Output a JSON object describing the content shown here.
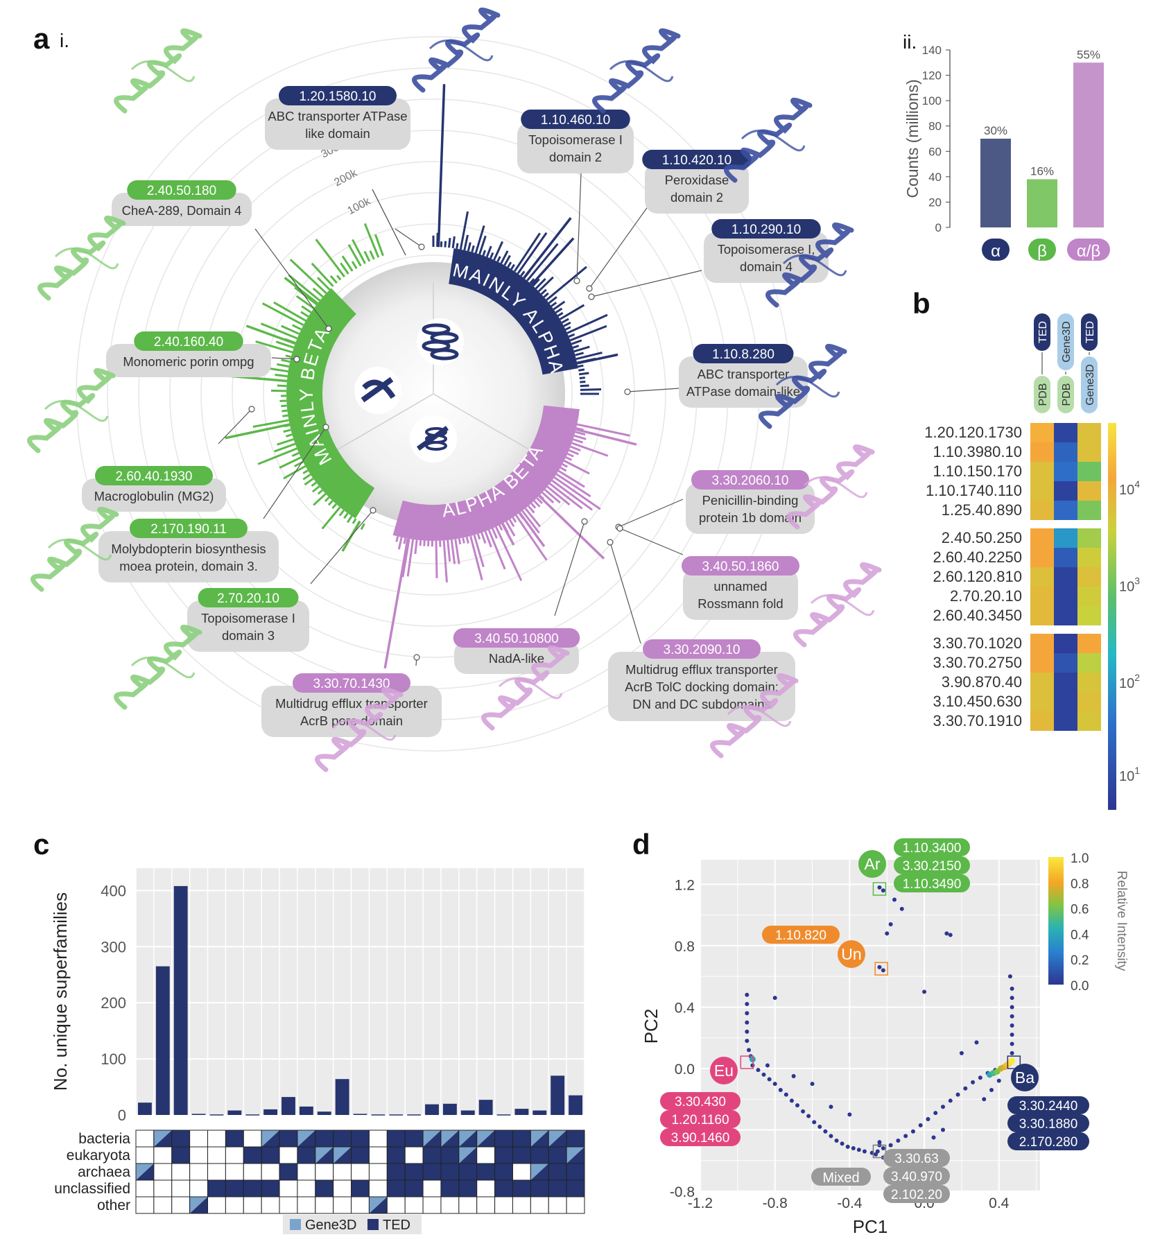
{
  "panel_labels": {
    "a": "a",
    "a_i": "i.",
    "a_ii": "ii.",
    "b": "b",
    "c": "c",
    "d": "d"
  },
  "colors": {
    "alpha": "#26356f",
    "beta": "#5cb849",
    "alphabeta": "#c084c8",
    "alpha_light": "#3c4fa0",
    "beta_light": "#8ccf7e",
    "ab_light": "#d4a3d8",
    "pill_grey": "#d9d9d9",
    "pink": "#e2457d",
    "orange": "#ef8b2c",
    "grey_label": "#9a9a9a"
  },
  "panel_a_i": {
    "type": "circular-bar",
    "ring_labels": [
      "100k",
      "200k",
      "300k"
    ],
    "ring_values": [
      100000,
      200000,
      300000
    ],
    "sectors": [
      {
        "label": "MAINLY ALPHA",
        "color": "#26356f"
      },
      {
        "label": "MAINLY BETA",
        "color": "#5cb849"
      },
      {
        "label": "ALPHA BETA",
        "color": "#c084c8"
      }
    ],
    "annotations": [
      {
        "id": "1.20.1580.10",
        "desc1": "ABC transporter ATPase",
        "desc2": "like domain",
        "class": "alpha"
      },
      {
        "id": "1.10.460.10",
        "desc1": "Topoisomerase I",
        "desc2": "domain 2",
        "class": "alpha"
      },
      {
        "id": "1.10.420.10",
        "desc1": "Peroxidase",
        "desc2": "domain 2",
        "class": "alpha"
      },
      {
        "id": "1.10.290.10",
        "desc1": "Topoisomerase I,",
        "desc2": "domain 4",
        "class": "alpha"
      },
      {
        "id": "1.10.8.280",
        "desc1": "ABC transporter",
        "desc2": "ATPase domain-like",
        "class": "alpha"
      },
      {
        "id": "3.30.2060.10",
        "desc1": "Penicillin-binding",
        "desc2": "protein 1b domain",
        "class": "ab"
      },
      {
        "id": "3.40.50.1860",
        "desc1": "unnamed",
        "desc2": "Rossmann fold",
        "class": "ab"
      },
      {
        "id": "3.30.2090.10",
        "desc1": "Multidrug efflux transporter",
        "desc2": "AcrB TolC docking domain;",
        "desc3": "DN and DC subdomains",
        "class": "ab"
      },
      {
        "id": "3.40.50.10800",
        "desc1": "NadA-like",
        "class": "ab"
      },
      {
        "id": "3.30.70.1430",
        "desc1": "Multidrug efflux transporter",
        "desc2": "AcrB pore domain",
        "class": "ab"
      },
      {
        "id": "2.70.20.10",
        "desc1": "Topoisomerase I",
        "desc2": "domain 3",
        "class": "beta"
      },
      {
        "id": "2.170.190.11",
        "desc1": "Molybdopterin biosynthesis",
        "desc2": "moea protein, domain 3.",
        "class": "beta"
      },
      {
        "id": "2.60.40.1930",
        "desc1": "Macroglobulin (MG2)",
        "class": "beta"
      },
      {
        "id": "2.40.160.40",
        "desc1": "Monomeric porin ompg",
        "class": "beta"
      },
      {
        "id": "2.40.50.180",
        "desc1": "CheA-289, Domain 4",
        "class": "beta"
      }
    ]
  },
  "panel_a_ii": {
    "type": "bar",
    "ylabel": "Counts (millions)",
    "ylim": [
      0,
      140
    ],
    "yticks": [
      "0",
      "20",
      "40",
      "60",
      "80",
      "100",
      "120",
      "140"
    ],
    "categories": [
      "α",
      "β",
      "α/β"
    ],
    "values": [
      70,
      38,
      130
    ],
    "percent_labels": [
      "30%",
      "16%",
      "55%"
    ]
  },
  "panel_b": {
    "type": "heatmap",
    "columns": [
      {
        "from": "PDB",
        "to": "TED"
      },
      {
        "from": "PDB",
        "to": "Gene3D"
      },
      {
        "from": "Gene3D",
        "to": "TED"
      }
    ],
    "groups": [
      {
        "rows": [
          {
            "label": "1.20.120.1730",
            "values": [
              0.88,
              0.06,
              0.78
            ]
          },
          {
            "label": "1.10.3980.10",
            "values": [
              0.86,
              0.18,
              0.78
            ]
          },
          {
            "label": "1.10.150.170",
            "values": [
              0.78,
              0.22,
              0.58
            ]
          },
          {
            "label": "1.10.1740.110",
            "values": [
              0.78,
              0.05,
              0.8
            ]
          },
          {
            "label": "1.25.40.890",
            "values": [
              0.8,
              0.2,
              0.6
            ]
          }
        ]
      },
      {
        "rows": [
          {
            "label": "2.40.50.250",
            "values": [
              0.86,
              0.32,
              0.66
            ]
          },
          {
            "label": "2.60.40.2250",
            "values": [
              0.86,
              0.15,
              0.74
            ]
          },
          {
            "label": "2.60.120.810",
            "values": [
              0.78,
              0.05,
              0.78
            ]
          },
          {
            "label": "2.70.20.10",
            "values": [
              0.8,
              0.05,
              0.74
            ]
          },
          {
            "label": "2.60.40.3450",
            "values": [
              0.8,
              0.05,
              0.72
            ]
          }
        ]
      },
      {
        "rows": [
          {
            "label": "3.30.70.1020",
            "values": [
              0.86,
              0.04,
              0.86
            ]
          },
          {
            "label": "3.30.70.2750",
            "values": [
              0.86,
              0.12,
              0.7
            ]
          },
          {
            "label": "3.90.870.40",
            "values": [
              0.78,
              0.05,
              0.76
            ]
          },
          {
            "label": "3.10.450.630",
            "values": [
              0.78,
              0.05,
              0.78
            ]
          },
          {
            "label": "3.30.70.1910",
            "values": [
              0.8,
              0.05,
              0.76
            ]
          }
        ]
      }
    ],
    "colorbar_ticks": [
      {
        "label": "10",
        "exp": "4",
        "frac": 0.83
      },
      {
        "label": "10",
        "exp": "3",
        "frac": 0.58
      },
      {
        "label": "10",
        "exp": "2",
        "frac": 0.33
      },
      {
        "label": "10",
        "exp": "1",
        "frac": 0.09
      }
    ]
  },
  "panel_c": {
    "type": "bar",
    "ylabel": "No. unique superfamilies",
    "ylim": [
      0,
      440
    ],
    "yticks": [
      0,
      100,
      200,
      300,
      400
    ],
    "values": [
      22,
      265,
      408,
      2,
      1,
      8,
      1,
      10,
      32,
      15,
      6,
      64,
      2,
      1,
      1,
      1,
      19,
      20,
      8,
      27,
      1,
      11,
      8,
      70,
      35
    ],
    "matrix_rows": [
      "bacteria",
      "eukaryota",
      "archaea",
      "unclassified",
      "other"
    ],
    "matrix": [
      [
        0,
        3,
        2,
        0,
        0,
        2,
        0,
        3,
        2,
        3,
        2,
        2,
        2,
        0,
        2,
        2,
        3,
        3,
        3,
        3,
        2,
        2,
        3,
        3,
        2
      ],
      [
        0,
        0,
        2,
        0,
        0,
        0,
        2,
        2,
        0,
        2,
        3,
        3,
        2,
        0,
        2,
        0,
        2,
        2,
        3,
        0,
        2,
        2,
        2,
        2,
        3
      ],
      [
        3,
        0,
        0,
        0,
        0,
        0,
        0,
        0,
        2,
        0,
        0,
        0,
        0,
        0,
        2,
        2,
        2,
        2,
        2,
        2,
        2,
        0,
        3,
        2,
        2
      ],
      [
        0,
        0,
        0,
        0,
        2,
        2,
        2,
        2,
        0,
        0,
        2,
        0,
        2,
        0,
        2,
        2,
        0,
        2,
        2,
        0,
        2,
        2,
        2,
        2,
        2
      ],
      [
        0,
        0,
        0,
        3,
        0,
        0,
        0,
        0,
        0,
        0,
        0,
        0,
        0,
        3,
        0,
        0,
        0,
        0,
        0,
        0,
        0,
        0,
        0,
        0,
        0
      ]
    ],
    "legend": [
      "Gene3D",
      "TED"
    ]
  },
  "panel_d": {
    "type": "scatter",
    "xlabel": "PC1",
    "ylabel": "PC2",
    "xlim": [
      -1.2,
      0.62
    ],
    "ylim": [
      -0.8,
      1.36
    ],
    "xticks": [
      "-1.2",
      "-0.8",
      "-0.4",
      "0.0",
      "0.4"
    ],
    "yticks": [
      "1.2",
      "0.8",
      "0.4",
      "0.0",
      "-0.4",
      "-0.8"
    ],
    "colorbar_title": "Relative Intensity",
    "colorbar_ticks": [
      "1.0",
      "0.8",
      "0.6",
      "0.4",
      "0.2",
      "0.0"
    ],
    "groups": {
      "Ar": {
        "label": "Ar",
        "ids": [
          "1.10.3400",
          "3.30.2150",
          "1.10.3490"
        ],
        "center": [
          -0.24,
          1.17
        ]
      },
      "Un": {
        "label": "Un",
        "ids": [
          "1.10.820"
        ],
        "center": [
          -0.23,
          0.65
        ]
      },
      "Eu": {
        "label": "Eu",
        "ids": [
          "3.30.430",
          "1.20.1160",
          "3.90.1460"
        ],
        "center": [
          -0.95,
          0.04
        ]
      },
      "Ba": {
        "label": "Ba",
        "ids": [
          "3.30.2440",
          "3.30.1880",
          "2.170.280"
        ],
        "center": [
          0.48,
          0.04
        ]
      },
      "Mixed": {
        "label": "Mixed",
        "ids": [
          "3.30.63",
          "3.40.970",
          "2.102.20"
        ],
        "center": [
          -0.24,
          -0.54
        ]
      }
    },
    "points": [
      [
        -0.95,
        0.48
      ],
      [
        -0.95,
        0.42
      ],
      [
        -0.95,
        0.36
      ],
      [
        -0.95,
        0.3
      ],
      [
        -0.95,
        0.24
      ],
      [
        -0.95,
        0.18
      ],
      [
        -0.94,
        0.12
      ],
      [
        -0.93,
        0.08
      ],
      [
        -0.8,
        0.46
      ],
      [
        -0.92,
        0.02
      ],
      [
        -0.89,
        -0.01
      ],
      [
        -0.86,
        -0.04
      ],
      [
        -0.83,
        -0.07
      ],
      [
        -0.8,
        -0.1
      ],
      [
        -0.77,
        -0.14
      ],
      [
        -0.74,
        -0.17
      ],
      [
        -0.71,
        -0.21
      ],
      [
        -0.68,
        -0.24
      ],
      [
        -0.65,
        -0.28
      ],
      [
        -0.62,
        -0.31
      ],
      [
        -0.59,
        -0.35
      ],
      [
        -0.56,
        -0.38
      ],
      [
        -0.53,
        -0.41
      ],
      [
        -0.5,
        -0.44
      ],
      [
        -0.47,
        -0.47
      ],
      [
        -0.44,
        -0.49
      ],
      [
        -0.41,
        -0.51
      ],
      [
        -0.38,
        -0.52
      ],
      [
        -0.35,
        -0.53
      ],
      [
        -0.32,
        -0.54
      ],
      [
        -0.28,
        -0.55
      ],
      [
        -0.25,
        -0.54
      ],
      [
        -0.22,
        -0.52
      ],
      [
        -0.18,
        -0.5
      ],
      [
        -0.14,
        -0.47
      ],
      [
        -0.1,
        -0.44
      ],
      [
        -0.06,
        -0.41
      ],
      [
        -0.02,
        -0.37
      ],
      [
        0.02,
        -0.33
      ],
      [
        0.06,
        -0.29
      ],
      [
        0.1,
        -0.25
      ],
      [
        0.14,
        -0.21
      ],
      [
        0.18,
        -0.17
      ],
      [
        0.22,
        -0.13
      ],
      [
        0.26,
        -0.09
      ],
      [
        0.3,
        -0.06
      ],
      [
        0.34,
        -0.03
      ],
      [
        0.38,
        -0.01
      ],
      [
        0.42,
        0.01
      ],
      [
        0.46,
        0.04
      ],
      [
        0.47,
        0.1
      ],
      [
        0.47,
        0.16
      ],
      [
        0.47,
        0.22
      ],
      [
        0.47,
        0.28
      ],
      [
        0.47,
        0.34
      ],
      [
        0.47,
        0.4
      ],
      [
        0.47,
        0.46
      ],
      [
        0.47,
        0.52
      ],
      [
        0.46,
        0.6
      ],
      [
        -0.24,
        1.18
      ],
      [
        -0.22,
        1.16
      ],
      [
        -0.16,
        1.1
      ],
      [
        -0.12,
        1.04
      ],
      [
        -0.2,
        0.88
      ],
      [
        -0.18,
        0.94
      ],
      [
        0.12,
        0.88
      ],
      [
        0.14,
        0.87
      ],
      [
        -0.24,
        0.66
      ],
      [
        -0.22,
        0.64
      ],
      [
        0.0,
        0.5
      ],
      [
        -0.6,
        -0.1
      ],
      [
        -0.5,
        -0.25
      ],
      [
        -0.4,
        -0.3
      ],
      [
        0.1,
        -0.4
      ],
      [
        0.2,
        0.1
      ],
      [
        0.28,
        0.17
      ],
      [
        -0.24,
        -0.5
      ],
      [
        -0.26,
        -0.56
      ],
      [
        -0.22,
        -0.58
      ],
      [
        -0.7,
        -0.05
      ],
      [
        0.05,
        -0.45
      ],
      [
        0.32,
        -0.2
      ],
      [
        0.36,
        -0.14
      ],
      [
        0.4,
        -0.08
      ],
      [
        -0.24,
        -0.48
      ],
      [
        -0.84,
        0.02
      ]
    ],
    "hot_points": [
      [
        0.35,
        -0.04,
        0.45
      ],
      [
        0.37,
        -0.03,
        0.55
      ],
      [
        0.39,
        -0.02,
        0.65
      ],
      [
        0.41,
        0.0,
        0.72
      ],
      [
        0.43,
        0.01,
        0.8
      ],
      [
        0.44,
        0.02,
        0.86
      ],
      [
        0.45,
        0.03,
        0.92
      ],
      [
        0.46,
        0.04,
        0.97
      ],
      [
        0.47,
        0.05,
        1.0
      ],
      [
        -0.92,
        0.06,
        0.45
      ]
    ]
  }
}
